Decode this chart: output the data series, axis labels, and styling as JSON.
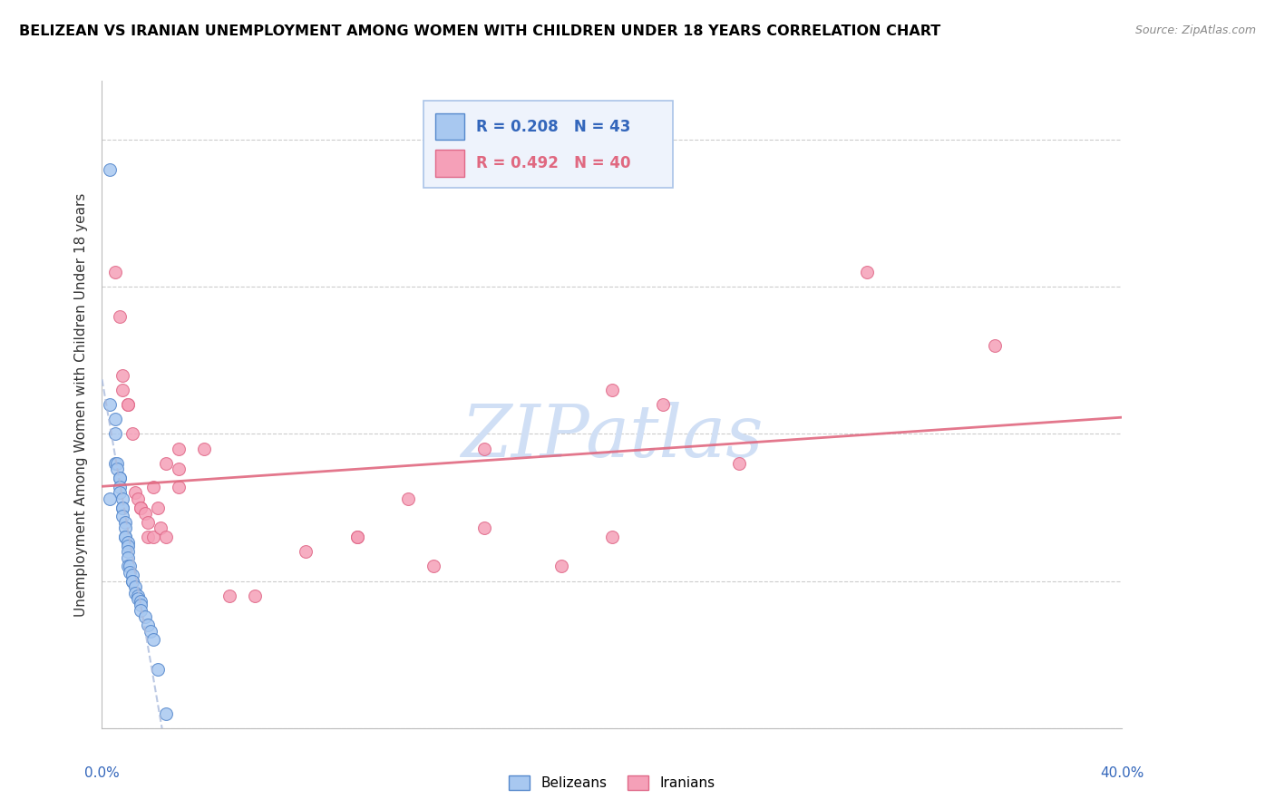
{
  "title": "BELIZEAN VS IRANIAN UNEMPLOYMENT AMONG WOMEN WITH CHILDREN UNDER 18 YEARS CORRELATION CHART",
  "source": "Source: ZipAtlas.com",
  "ylabel": "Unemployment Among Women with Children Under 18 years",
  "xlim": [
    0.0,
    0.4
  ],
  "ylim": [
    0.0,
    0.22
  ],
  "yticks": [
    0.0,
    0.05,
    0.1,
    0.15,
    0.2
  ],
  "xticks": [
    0.0,
    0.05,
    0.1,
    0.15,
    0.2,
    0.25,
    0.3,
    0.35,
    0.4
  ],
  "belizean_color": "#a8c8f0",
  "iranian_color": "#f5a0b8",
  "belizean_edge_color": "#5588cc",
  "iranian_edge_color": "#e06888",
  "trendline_belizean_color": "#4477cc",
  "trendline_iranian_color": "#e06880",
  "R_belizean": 0.208,
  "N_belizean": 43,
  "R_iranian": 0.492,
  "N_iranian": 40,
  "watermark": "ZIPatlas",
  "watermark_color": "#d0dff5",
  "legend_box_color": "#eef3fc",
  "legend_border_color": "#aac4e8",
  "belizean_x": [
    0.003,
    0.003,
    0.005,
    0.005,
    0.005,
    0.006,
    0.006,
    0.007,
    0.007,
    0.007,
    0.007,
    0.008,
    0.008,
    0.008,
    0.008,
    0.009,
    0.009,
    0.009,
    0.009,
    0.01,
    0.01,
    0.01,
    0.01,
    0.01,
    0.011,
    0.011,
    0.012,
    0.012,
    0.012,
    0.013,
    0.013,
    0.014,
    0.014,
    0.015,
    0.015,
    0.015,
    0.017,
    0.018,
    0.019,
    0.02,
    0.022,
    0.025,
    0.003
  ],
  "belizean_y": [
    0.19,
    0.11,
    0.105,
    0.1,
    0.09,
    0.09,
    0.088,
    0.085,
    0.085,
    0.082,
    0.08,
    0.078,
    0.075,
    0.075,
    0.072,
    0.07,
    0.068,
    0.065,
    0.065,
    0.063,
    0.062,
    0.06,
    0.058,
    0.055,
    0.055,
    0.053,
    0.052,
    0.05,
    0.05,
    0.048,
    0.046,
    0.045,
    0.044,
    0.043,
    0.042,
    0.04,
    0.038,
    0.035,
    0.033,
    0.03,
    0.02,
    0.005,
    0.078
  ],
  "iranian_x": [
    0.005,
    0.007,
    0.008,
    0.008,
    0.01,
    0.01,
    0.012,
    0.013,
    0.014,
    0.015,
    0.015,
    0.017,
    0.018,
    0.018,
    0.02,
    0.02,
    0.022,
    0.023,
    0.025,
    0.025,
    0.03,
    0.03,
    0.03,
    0.04,
    0.05,
    0.06,
    0.08,
    0.1,
    0.1,
    0.12,
    0.13,
    0.15,
    0.15,
    0.18,
    0.2,
    0.2,
    0.22,
    0.25,
    0.3,
    0.35
  ],
  "iranian_y": [
    0.155,
    0.14,
    0.12,
    0.115,
    0.11,
    0.11,
    0.1,
    0.08,
    0.078,
    0.075,
    0.075,
    0.073,
    0.07,
    0.065,
    0.065,
    0.082,
    0.075,
    0.068,
    0.065,
    0.09,
    0.088,
    0.082,
    0.095,
    0.095,
    0.045,
    0.045,
    0.06,
    0.065,
    0.065,
    0.078,
    0.055,
    0.068,
    0.095,
    0.055,
    0.115,
    0.065,
    0.11,
    0.09,
    0.155,
    0.13
  ]
}
